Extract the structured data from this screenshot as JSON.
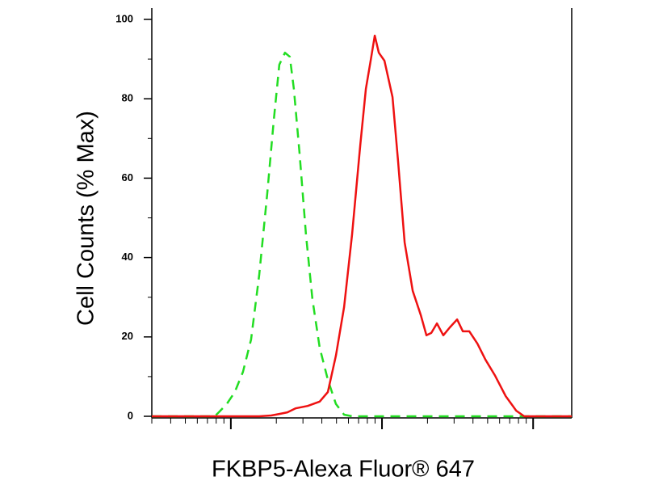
{
  "chart_data": {
    "type": "line",
    "ylabel": "Cell Counts (% Max)",
    "xlabel": "FKBP5-Alexa Fluor® 647",
    "xscale": "log",
    "xlim": [
      300,
      180000
    ],
    "ylim": [
      0,
      100
    ],
    "yticks": [
      0,
      20,
      40,
      60,
      80,
      100
    ],
    "series": [
      {
        "color": "#22dd22",
        "line_style": "dashed",
        "x": [
          300,
          782,
          832,
          940,
          1063,
          1203,
          1361,
          1540,
          1740,
          1920,
          2093,
          2281,
          2455,
          2612,
          2851,
          3142,
          3467,
          3873,
          4385,
          4955,
          5610,
          6340,
          180000
        ],
        "values": [
          0,
          0,
          1.0,
          3.1,
          6.1,
          11.2,
          19.3,
          35.6,
          56,
          74.3,
          88.6,
          91.6,
          90.6,
          82.5,
          66.2,
          45.8,
          29.5,
          17.3,
          9.2,
          3.1,
          0.4,
          0,
          0
        ]
      },
      {
        "color": "#ee1111",
        "line_style": "solid",
        "x": [
          300,
          1540,
          1850,
          2093,
          2366,
          2678,
          3221,
          3873,
          4385,
          4955,
          5610,
          6340,
          7175,
          7820,
          8415,
          8954,
          9525,
          10380,
          11740,
          12790,
          14130,
          15970,
          18070,
          19680,
          21190,
          23110,
          25470,
          28120,
          31410,
          34270,
          37840,
          42760,
          48310,
          56100,
          65770,
          77270,
          87300,
          180000
        ],
        "values": [
          0,
          0,
          0.2,
          0.6,
          1.0,
          2.0,
          2.6,
          3.7,
          6.1,
          15.3,
          27.5,
          45.8,
          68.2,
          82.5,
          89.6,
          95.9,
          91.6,
          89.6,
          80.4,
          64.2,
          43.8,
          31.6,
          25.5,
          20.4,
          21.0,
          23.4,
          20.4,
          22.4,
          24.4,
          21.4,
          21.4,
          18.3,
          14.3,
          10.2,
          5.1,
          1.4,
          0,
          0
        ]
      }
    ]
  }
}
